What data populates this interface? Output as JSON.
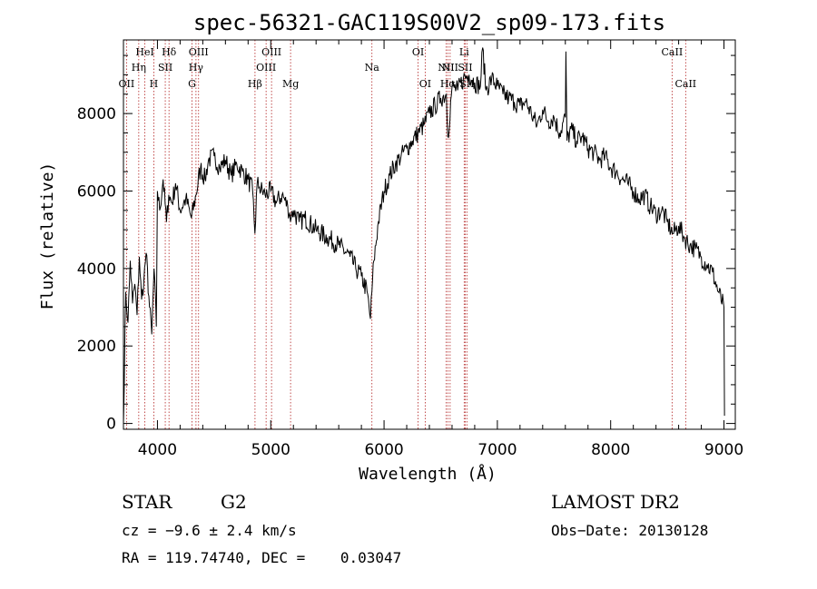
{
  "chart_data": {
    "type": "line",
    "title": "spec-56321-GAC119S00V2_sp09-173.fits",
    "xlabel": "Wavelength (Å)",
    "ylabel": "Flux (relative)",
    "xlim": [
      3700,
      9100
    ],
    "ylim": [
      -150,
      9900
    ],
    "x_ticks": [
      4000,
      5000,
      6000,
      7000,
      8000,
      9000
    ],
    "y_ticks": [
      0,
      2000,
      4000,
      6000,
      8000
    ],
    "series": [
      {
        "x": [
          3700,
          3720,
          3740,
          3760,
          3780,
          3800,
          3820,
          3840,
          3860,
          3880,
          3900,
          3930,
          3950,
          3970,
          3990,
          4000,
          4020,
          4050,
          4080,
          4100,
          4130,
          4160,
          4200,
          4250,
          4300,
          4340,
          4380,
          4420,
          4450,
          4500,
          4550,
          4600,
          4650,
          4700,
          4750,
          4800,
          4840,
          4860,
          4880,
          4900,
          4950,
          5000,
          5050,
          5100,
          5150,
          5180,
          5200,
          5250,
          5300,
          5400,
          5500,
          5600,
          5700,
          5750,
          5800,
          5850,
          5880,
          5893,
          5910,
          5950,
          6000,
          6050,
          6100,
          6150,
          6200,
          6250,
          6300,
          6350,
          6400,
          6450,
          6500,
          6550,
          6563,
          6600,
          6650,
          6700,
          6750,
          6800,
          6850,
          6870,
          6900,
          6950,
          7000,
          7050,
          7100,
          7150,
          7200,
          7250,
          7300,
          7350,
          7400,
          7450,
          7500,
          7550,
          7600,
          7605,
          7615,
          7650,
          7700,
          7750,
          7800,
          7850,
          7900,
          7950,
          8000,
          8050,
          8100,
          8150,
          8200,
          8250,
          8300,
          8350,
          8400,
          8450,
          8500,
          8550,
          8600,
          8650,
          8700,
          8750,
          8800,
          8850,
          8900,
          8950,
          9000,
          9005
        ],
        "y": [
          0,
          3400,
          2600,
          4200,
          3100,
          3600,
          2800,
          4300,
          3200,
          3700,
          4400,
          3000,
          2300,
          4000,
          2500,
          6000,
          5500,
          6300,
          5200,
          5900,
          5700,
          6200,
          5500,
          5800,
          5300,
          5900,
          6600,
          6300,
          6800,
          6900,
          6600,
          6800,
          6400,
          6700,
          6500,
          6300,
          6000,
          4900,
          6200,
          6100,
          5900,
          6000,
          5700,
          5900,
          5600,
          5300,
          5500,
          5200,
          5300,
          5000,
          4800,
          4600,
          4300,
          4000,
          3800,
          3400,
          2700,
          3400,
          4200,
          5200,
          6000,
          6400,
          6700,
          6900,
          7100,
          7300,
          7500,
          7700,
          8000,
          8200,
          8400,
          8500,
          7400,
          8700,
          8600,
          8900,
          9000,
          8800,
          8700,
          9700,
          8600,
          8900,
          8700,
          8500,
          8400,
          8300,
          8200,
          8300,
          8000,
          7700,
          8100,
          7800,
          7900,
          7500,
          7900,
          9600,
          7300,
          7600,
          7300,
          7400,
          7100,
          7000,
          6800,
          6900,
          6600,
          6500,
          6300,
          6200,
          6000,
          5800,
          5900,
          5600,
          5400,
          5500,
          5200,
          4900,
          5100,
          4800,
          4600,
          4500,
          4300,
          4100,
          3900,
          3400,
          3000,
          200
        ]
      }
    ],
    "lines": [
      {
        "label": "OII",
        "x": 3727,
        "row": 3
      },
      {
        "label": "Hη",
        "x": 3835,
        "row": 2
      },
      {
        "label": "HeI",
        "x": 3889,
        "row": 1
      },
      {
        "label": "H",
        "x": 3968,
        "row": 3
      },
      {
        "label": "SII",
        "x": 4069,
        "row": 2
      },
      {
        "label": "Hδ",
        "x": 4102,
        "row": 1
      },
      {
        "label": "G",
        "x": 4305,
        "row": 3
      },
      {
        "label": "Hγ",
        "x": 4340,
        "row": 2
      },
      {
        "label": "OIII",
        "x": 4363,
        "row": 1
      },
      {
        "label": "Hβ",
        "x": 4861,
        "row": 3
      },
      {
        "label": "OIII",
        "x": 4959,
        "row": 2
      },
      {
        "label": "OIII",
        "x": 5007,
        "row": 1
      },
      {
        "label": "Mg",
        "x": 5175,
        "row": 3
      },
      {
        "label": "Na",
        "x": 5893,
        "row": 2
      },
      {
        "label": "OI",
        "x": 6300,
        "row": 1
      },
      {
        "label": "OI",
        "x": 6363,
        "row": 3
      },
      {
        "label": "NII",
        "x": 6548,
        "row": 2
      },
      {
        "label": "Hα",
        "x": 6563,
        "row": 3
      },
      {
        "label": "NII",
        "x": 6583,
        "row": 2
      },
      {
        "label": "Li",
        "x": 6707,
        "row": 1
      },
      {
        "label": "SII",
        "x": 6716,
        "row": 2
      },
      {
        "label": "SII",
        "x": 6731,
        "row": 3
      },
      {
        "label": "CaII",
        "x": 8542,
        "row": 1
      },
      {
        "label": "CaII",
        "x": 8662,
        "row": 3
      }
    ]
  },
  "info": {
    "object_class": "STAR",
    "subclass": "G2",
    "survey": "LAMOST DR2",
    "redshift_line": "cz = −9.6 ± 2.4 km/s",
    "obs_date": "Obs−Date: 20130128",
    "coords": "RA = 119.74740, DEC =    0.03047"
  },
  "colors": {
    "spectrum": "#000000",
    "line_markers": "#b22222",
    "axes": "#000000"
  }
}
